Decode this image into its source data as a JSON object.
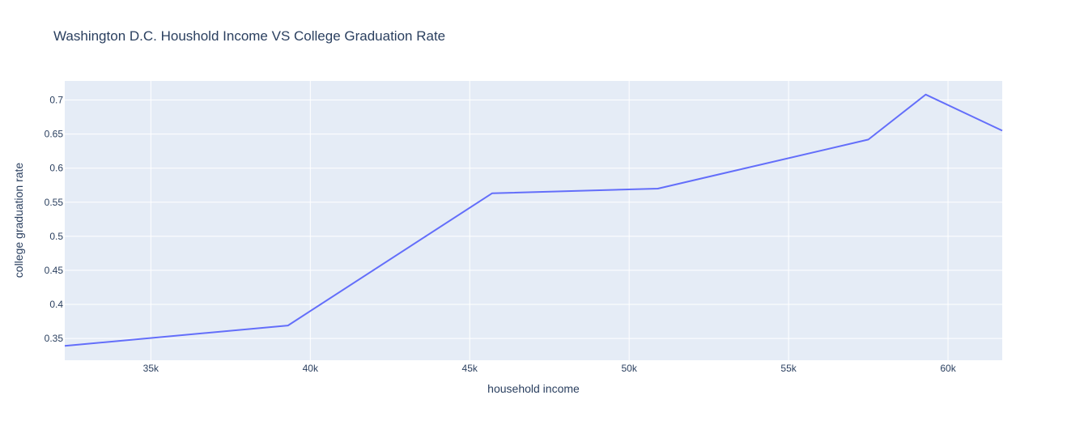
{
  "chart_data": {
    "type": "line",
    "title": "Washington D.C. Houshold Income VS College Graduation Rate",
    "xlabel": "household income",
    "ylabel": "college graduation rate",
    "x": [
      32300,
      39300,
      45700,
      50900,
      57500,
      59300,
      61700
    ],
    "y": [
      0.339,
      0.369,
      0.563,
      0.57,
      0.642,
      0.708,
      0.655
    ],
    "xlim": [
      32300,
      61700
    ],
    "ylim": [
      0.318,
      0.728
    ],
    "x_ticks": [
      {
        "value": 35000,
        "label": "35k"
      },
      {
        "value": 40000,
        "label": "40k"
      },
      {
        "value": 45000,
        "label": "45k"
      },
      {
        "value": 50000,
        "label": "50k"
      },
      {
        "value": 55000,
        "label": "55k"
      },
      {
        "value": 60000,
        "label": "60k"
      }
    ],
    "y_ticks": [
      {
        "value": 0.35,
        "label": "0.35"
      },
      {
        "value": 0.4,
        "label": "0.4"
      },
      {
        "value": 0.45,
        "label": "0.45"
      },
      {
        "value": 0.5,
        "label": "0.5"
      },
      {
        "value": 0.55,
        "label": "0.55"
      },
      {
        "value": 0.6,
        "label": "0.6"
      },
      {
        "value": 0.65,
        "label": "0.65"
      },
      {
        "value": 0.7,
        "label": "0.7"
      }
    ],
    "grid": true,
    "line_color": "#636efa",
    "plot_background": "#e5ecf6",
    "grid_color": "#ffffff",
    "text_color": "#2a3f5f"
  }
}
